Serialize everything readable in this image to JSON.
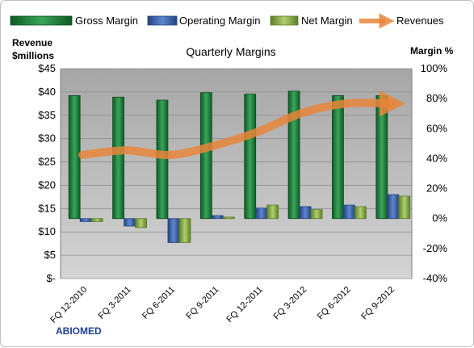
{
  "chart_data": {
    "type": "bar",
    "title": "Quarterly Margins",
    "company": "ABIOMED",
    "categories": [
      "FQ 12-2010",
      "FQ 3-2011",
      "FQ 6-2011",
      "FQ 9-2011",
      "FQ 12-2011",
      "FQ 3-2012",
      "FQ 6-2012",
      "FQ 9-2012"
    ],
    "left_axis": {
      "label_line1": "Revenue",
      "label_line2": "$millions",
      "range": [
        0,
        45
      ],
      "ticks": [
        {
          "v": 0,
          "label": "$-"
        },
        {
          "v": 5,
          "label": "$5"
        },
        {
          "v": 10,
          "label": "$10"
        },
        {
          "v": 15,
          "label": "$15"
        },
        {
          "v": 20,
          "label": "$20"
        },
        {
          "v": 25,
          "label": "$25"
        },
        {
          "v": 30,
          "label": "$30"
        },
        {
          "v": 35,
          "label": "$35"
        },
        {
          "v": 40,
          "label": "$40"
        },
        {
          "v": 45,
          "label": "$45"
        }
      ]
    },
    "right_axis": {
      "label": "Margin %",
      "range": [
        -40,
        100
      ],
      "ticks": [
        {
          "v": -40,
          "label": "-40%"
        },
        {
          "v": -20,
          "label": "-20%"
        },
        {
          "v": 0,
          "label": "0%"
        },
        {
          "v": 20,
          "label": "20%"
        },
        {
          "v": 40,
          "label": "40%"
        },
        {
          "v": 60,
          "label": "60%"
        },
        {
          "v": 80,
          "label": "80%"
        },
        {
          "v": 100,
          "label": "100%"
        }
      ]
    },
    "series": [
      {
        "name": "Gross Margin",
        "axis": "right",
        "kind": "bar",
        "color": "#1e7a3a",
        "values": [
          82,
          81,
          79,
          84,
          83,
          85,
          82,
          82
        ]
      },
      {
        "name": "Operating Margin",
        "axis": "right",
        "kind": "bar",
        "color": "#3c64b4",
        "values": [
          -2,
          -5,
          -16,
          2,
          7,
          8,
          9,
          16
        ]
      },
      {
        "name": "Net Margin",
        "axis": "right",
        "kind": "bar",
        "color": "#8ab04a",
        "values": [
          -2,
          -6,
          -16,
          1,
          9,
          6,
          8,
          15
        ]
      },
      {
        "name": "Revenues",
        "axis": "left",
        "kind": "line",
        "color": "#e8853a",
        "values": [
          26.5,
          27.5,
          26.5,
          28.5,
          31.5,
          35.5,
          37.5,
          37.5
        ]
      }
    ],
    "grid": true,
    "legend_position": "top"
  }
}
